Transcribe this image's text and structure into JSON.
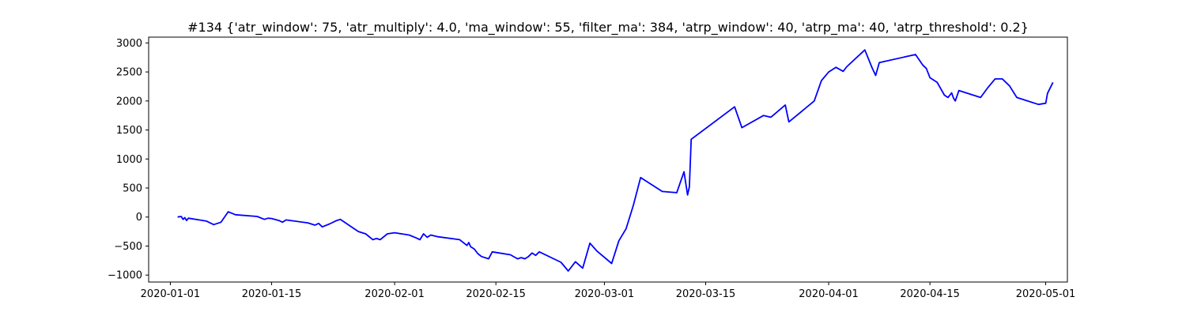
{
  "chart_data": {
    "type": "line",
    "title": "#134 {'atr_window': 75, 'atr_multiply': 4.0, 'ma_window': 55, 'filter_ma': 384, 'atrp_window': 40, 'atrp_ma': 40, 'atrp_threshold': 0.2}",
    "xlabel": "",
    "ylabel": "",
    "x_type": "date",
    "xlim": [
      "2019-12-29",
      "2020-05-04"
    ],
    "ylim": [
      -1120,
      3100
    ],
    "x_ticks": [
      "2020-01-01",
      "2020-01-15",
      "2020-02-01",
      "2020-02-15",
      "2020-03-01",
      "2020-03-15",
      "2020-04-01",
      "2020-04-15",
      "2020-05-01"
    ],
    "y_ticks": [
      -1000,
      -500,
      0,
      500,
      1000,
      1500,
      2000,
      2500,
      3000
    ],
    "grid": false,
    "legend": "none",
    "color": "#0000ff",
    "series": [
      {
        "points": [
          [
            "2020-01-02",
            0
          ],
          [
            "2020-01-02 12:00",
            10
          ],
          [
            "2020-01-02 18:00",
            -40
          ],
          [
            "2020-01-03",
            -10
          ],
          [
            "2020-01-03 06:00",
            -60
          ],
          [
            "2020-01-03 12:00",
            -20
          ],
          [
            "2020-01-06",
            -70
          ],
          [
            "2020-01-07",
            -130
          ],
          [
            "2020-01-08",
            -90
          ],
          [
            "2020-01-09",
            90
          ],
          [
            "2020-01-10",
            40
          ],
          [
            "2020-01-13",
            10
          ],
          [
            "2020-01-14",
            -40
          ],
          [
            "2020-01-14 12:00",
            -20
          ],
          [
            "2020-01-15",
            -25
          ],
          [
            "2020-01-16",
            -60
          ],
          [
            "2020-01-16 12:00",
            -90
          ],
          [
            "2020-01-17",
            -50
          ],
          [
            "2020-01-20",
            -100
          ],
          [
            "2020-01-21",
            -140
          ],
          [
            "2020-01-21 12:00",
            -110
          ],
          [
            "2020-01-22",
            -170
          ],
          [
            "2020-01-23",
            -120
          ],
          [
            "2020-01-24",
            -60
          ],
          [
            "2020-01-24 12:00",
            -40
          ],
          [
            "2020-01-27",
            -250
          ],
          [
            "2020-01-28",
            -290
          ],
          [
            "2020-01-29",
            -390
          ],
          [
            "2020-01-29 12:00",
            -370
          ],
          [
            "2020-01-30",
            -390
          ],
          [
            "2020-01-31",
            -290
          ],
          [
            "2020-02-01",
            -270
          ],
          [
            "2020-02-03",
            -310
          ],
          [
            "2020-02-04",
            -360
          ],
          [
            "2020-02-04 12:00",
            -390
          ],
          [
            "2020-02-05",
            -290
          ],
          [
            "2020-02-05 12:00",
            -350
          ],
          [
            "2020-02-06",
            -310
          ],
          [
            "2020-02-07",
            -340
          ],
          [
            "2020-02-10",
            -390
          ],
          [
            "2020-02-11",
            -490
          ],
          [
            "2020-02-11 06:00",
            -440
          ],
          [
            "2020-02-11 12:00",
            -510
          ],
          [
            "2020-02-12",
            -550
          ],
          [
            "2020-02-12 12:00",
            -630
          ],
          [
            "2020-02-13",
            -680
          ],
          [
            "2020-02-14",
            -720
          ],
          [
            "2020-02-14 12:00",
            -600
          ],
          [
            "2020-02-17",
            -650
          ],
          [
            "2020-02-18",
            -720
          ],
          [
            "2020-02-18 12:00",
            -700
          ],
          [
            "2020-02-19",
            -720
          ],
          [
            "2020-02-19 12:00",
            -680
          ],
          [
            "2020-02-20",
            -620
          ],
          [
            "2020-02-20 12:00",
            -660
          ],
          [
            "2020-02-21",
            -600
          ],
          [
            "2020-02-24",
            -780
          ],
          [
            "2020-02-25",
            -930
          ],
          [
            "2020-02-26",
            -770
          ],
          [
            "2020-02-27",
            -880
          ],
          [
            "2020-02-28",
            -450
          ],
          [
            "2020-02-29",
            -590
          ],
          [
            "2020-03-02",
            -800
          ],
          [
            "2020-03-03",
            -410
          ],
          [
            "2020-03-04",
            -200
          ],
          [
            "2020-03-05",
            200
          ],
          [
            "2020-03-06",
            680
          ],
          [
            "2020-03-09",
            440
          ],
          [
            "2020-03-10",
            430
          ],
          [
            "2020-03-11",
            420
          ],
          [
            "2020-03-12",
            780
          ],
          [
            "2020-03-12 12:00",
            380
          ],
          [
            "2020-03-12 18:00",
            520
          ],
          [
            "2020-03-13",
            1340
          ],
          [
            "2020-03-19",
            1900
          ],
          [
            "2020-03-20",
            1540
          ],
          [
            "2020-03-23",
            1750
          ],
          [
            "2020-03-24",
            1720
          ],
          [
            "2020-03-26",
            1930
          ],
          [
            "2020-03-26 12:00",
            1640
          ],
          [
            "2020-03-27",
            1690
          ],
          [
            "2020-03-30",
            2000
          ],
          [
            "2020-03-31",
            2350
          ],
          [
            "2020-04-01",
            2500
          ],
          [
            "2020-04-02",
            2580
          ],
          [
            "2020-04-03",
            2510
          ],
          [
            "2020-04-03 12:00",
            2590
          ],
          [
            "2020-04-06",
            2880
          ],
          [
            "2020-04-07",
            2570
          ],
          [
            "2020-04-07 12:00",
            2440
          ],
          [
            "2020-04-08",
            2660
          ],
          [
            "2020-04-13",
            2800
          ],
          [
            "2020-04-14",
            2620
          ],
          [
            "2020-04-14 12:00",
            2560
          ],
          [
            "2020-04-15",
            2400
          ],
          [
            "2020-04-16",
            2320
          ],
          [
            "2020-04-17",
            2100
          ],
          [
            "2020-04-17 12:00",
            2060
          ],
          [
            "2020-04-18",
            2140
          ],
          [
            "2020-04-18 06:00",
            2050
          ],
          [
            "2020-04-18 12:00",
            2000
          ],
          [
            "2020-04-19",
            2180
          ],
          [
            "2020-04-22",
            2060
          ],
          [
            "2020-04-23",
            2230
          ],
          [
            "2020-04-24",
            2380
          ],
          [
            "2020-04-25",
            2380
          ],
          [
            "2020-04-26",
            2260
          ],
          [
            "2020-04-27",
            2060
          ],
          [
            "2020-04-30",
            1940
          ],
          [
            "2020-05-01",
            1960
          ],
          [
            "2020-05-01 06:00",
            2130
          ],
          [
            "2020-05-02",
            2320
          ]
        ]
      }
    ]
  }
}
